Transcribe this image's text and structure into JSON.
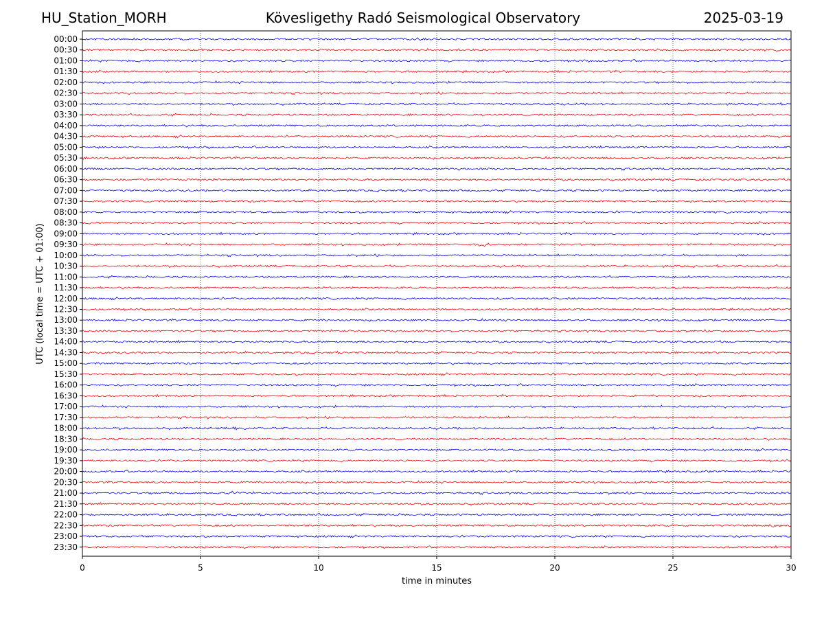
{
  "header": {
    "station": "HU_Station_MORH",
    "observatory": "Kövesligethy Radó Seismological Observatory",
    "date": "2025-03-19"
  },
  "chart_data": {
    "type": "line",
    "subtype": "helicorder",
    "xlabel": "time in minutes",
    "ylabel": "UTC (local time = UTC + 01:00)",
    "xlim": [
      0,
      30
    ],
    "xticks": [
      0,
      5,
      10,
      15,
      20,
      25,
      30
    ],
    "grid": "vertical dotted at 5-minute intervals",
    "trace_colors": [
      "#0000ff",
      "#ff0000"
    ],
    "rows": [
      "00:00",
      "00:30",
      "01:00",
      "01:30",
      "02:00",
      "02:30",
      "03:00",
      "03:30",
      "04:00",
      "04:30",
      "05:00",
      "05:30",
      "06:00",
      "06:30",
      "07:00",
      "07:30",
      "08:00",
      "08:30",
      "09:00",
      "09:30",
      "10:00",
      "10:30",
      "11:00",
      "11:30",
      "12:00",
      "12:30",
      "13:00",
      "13:30",
      "14:00",
      "14:30",
      "15:00",
      "15:30",
      "16:00",
      "16:30",
      "17:00",
      "17:30",
      "18:00",
      "18:30",
      "19:00",
      "19:30",
      "20:00",
      "20:30",
      "21:00",
      "21:30",
      "22:00",
      "22:30",
      "23:00",
      "23:30"
    ],
    "events": [
      {
        "row": "09:30",
        "minute": 17.0,
        "amplitude": 2.5
      },
      {
        "row": "22:30",
        "minute": 29.5,
        "amplitude": 3.0
      },
      {
        "row": "21:00",
        "minute": 6.3,
        "amplitude": 2.0
      },
      {
        "row": "18:00",
        "minute": 6.7,
        "amplitude": 1.8
      }
    ]
  }
}
